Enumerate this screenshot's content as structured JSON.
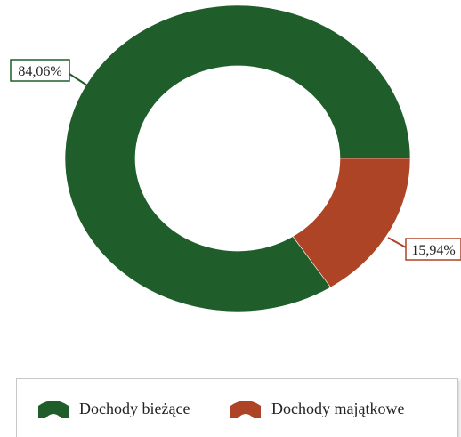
{
  "chart_data": {
    "type": "pie",
    "variant": "donut",
    "title": "",
    "categories": [
      "Dochody bieżące",
      "Dochody majątkowe"
    ],
    "values": [
      84.06,
      15.94
    ],
    "labels": [
      "84,06%",
      "15,94%"
    ],
    "colors": [
      "#1f5e2b",
      "#ae4426"
    ],
    "legend_position": "bottom"
  },
  "legend": {
    "items": [
      {
        "label": "Dochody bieżące",
        "color": "#1f5e2b",
        "icon": "arc-swatch-icon"
      },
      {
        "label": "Dochody majątkowe",
        "color": "#ae4426",
        "icon": "arc-swatch-icon"
      }
    ]
  }
}
